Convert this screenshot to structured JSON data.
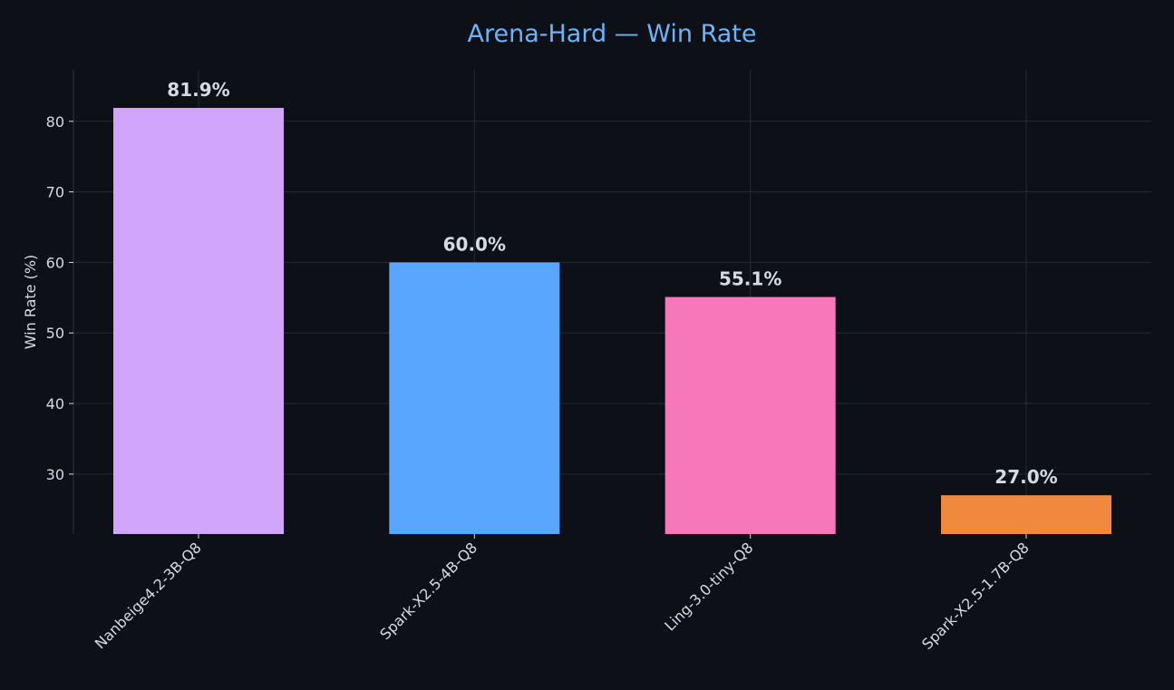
{
  "colors": {
    "background": "#0d1017",
    "title": "#6db3f8",
    "text": "#d6dbe3",
    "grid": "#242a33",
    "spine": "#2c323c"
  },
  "chart_data": {
    "type": "bar",
    "title": "Arena-Hard — Win Rate",
    "xlabel": "",
    "ylabel": "Win Rate (%)",
    "categories": [
      "Nanbeige4.2-3B-Q8",
      "Spark-X2.5-4B-Q8",
      "Ling-3.0-tiny-Q8",
      "Spark-X2.5-1.7B-Q8"
    ],
    "values": [
      81.9,
      60.0,
      55.1,
      27.0
    ],
    "value_labels": [
      "81.9%",
      "60.0%",
      "55.1%",
      "27.0%"
    ],
    "bar_colors": [
      "#d2a5fd",
      "#58a6ff",
      "#f778ba",
      "#f0883e"
    ],
    "ylim": [
      21.5,
      87.3
    ],
    "yticks": [
      30,
      40,
      50,
      60,
      70,
      80
    ],
    "grid": true,
    "legend": "none"
  }
}
